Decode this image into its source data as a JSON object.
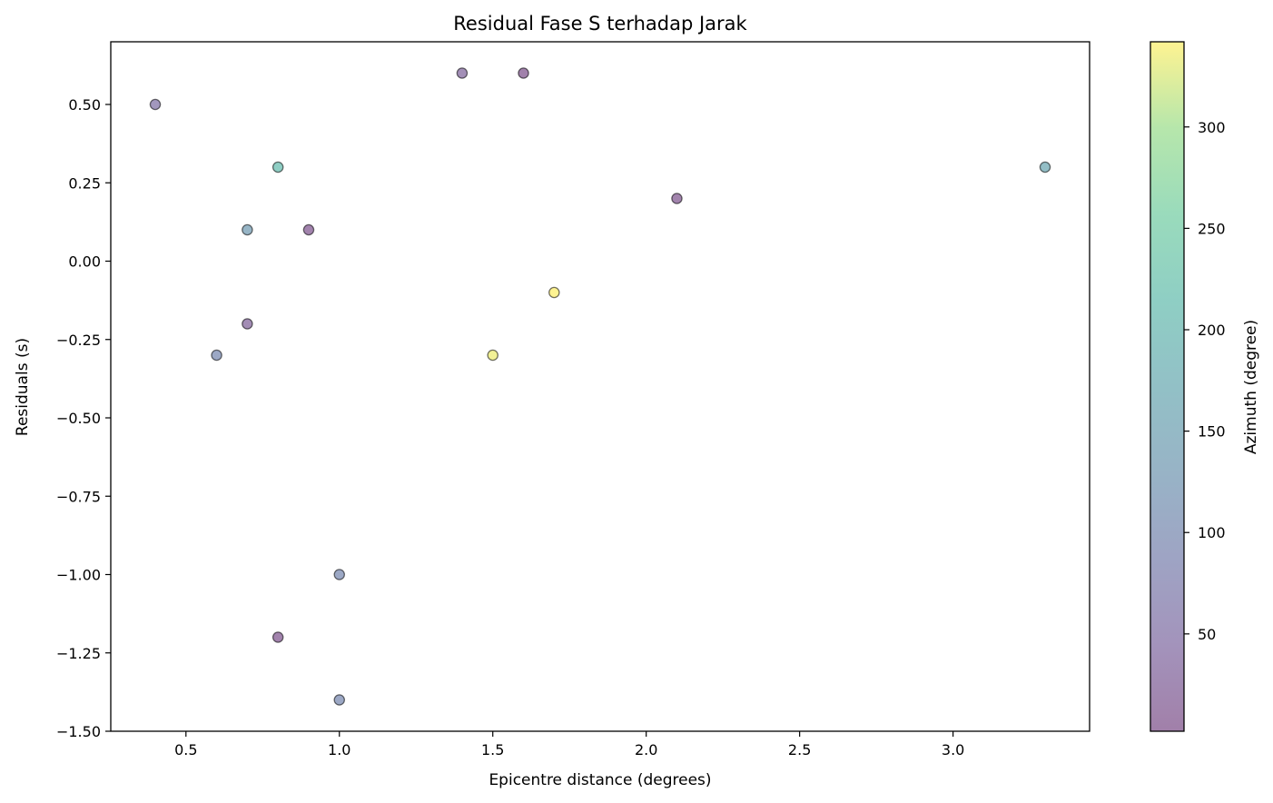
{
  "chart_data": {
    "type": "scatter",
    "title": "Residual Fase S terhadap Jarak",
    "xlabel": "Epicentre distance (degrees)",
    "ylabel": "Residuals (s)",
    "xlim": [
      0.255,
      3.445
    ],
    "ylim": [
      -1.5,
      0.7
    ],
    "xticks": [
      "0.5",
      "1.0",
      "1.5",
      "2.0",
      "2.5",
      "3.0"
    ],
    "yticks": [
      "−1.50",
      "−1.25",
      "−1.00",
      "−0.75",
      "−0.50",
      "−0.25",
      "0.00",
      "0.25",
      "0.50"
    ],
    "grid": false,
    "colorbar": {
      "label": "Azimuth (degree)",
      "range": [
        2,
        342
      ],
      "ticks": [
        "50",
        "100",
        "150",
        "200",
        "250",
        "300"
      ],
      "colormap": "viridis",
      "alpha": 0.5
    },
    "points": [
      {
        "x": 0.4,
        "y": 0.5,
        "azimuth": 55
      },
      {
        "x": 0.6,
        "y": -0.3,
        "azimuth": 100
      },
      {
        "x": 0.7,
        "y": 0.1,
        "azimuth": 135
      },
      {
        "x": 0.7,
        "y": -0.2,
        "azimuth": 30
      },
      {
        "x": 0.8,
        "y": 0.3,
        "azimuth": 215
      },
      {
        "x": 0.8,
        "y": -1.2,
        "azimuth": 10
      },
      {
        "x": 0.9,
        "y": 0.1,
        "azimuth": 10
      },
      {
        "x": 1.0,
        "y": -1.0,
        "azimuth": 100
      },
      {
        "x": 1.0,
        "y": -1.4,
        "azimuth": 100
      },
      {
        "x": 1.4,
        "y": 0.6,
        "azimuth": 35
      },
      {
        "x": 1.5,
        "y": -0.3,
        "azimuth": 335
      },
      {
        "x": 1.6,
        "y": 0.6,
        "azimuth": 5
      },
      {
        "x": 1.7,
        "y": -0.1,
        "azimuth": 342
      },
      {
        "x": 2.1,
        "y": 0.2,
        "azimuth": 12
      },
      {
        "x": 3.3,
        "y": 0.3,
        "azimuth": 165
      }
    ]
  }
}
